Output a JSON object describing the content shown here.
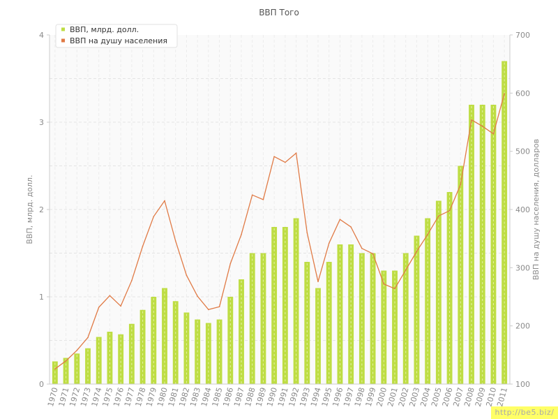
{
  "chart_data": {
    "type": "bar",
    "title": "ВВП Того",
    "ylabel_left": "ВВП, млрд. долл.",
    "ylabel_right": "ВВП на душу населения, долларов",
    "ylim_left": [
      0,
      4
    ],
    "ylim_right": [
      100,
      700
    ],
    "yticks_left": [
      "0",
      "1",
      "2",
      "3",
      "4"
    ],
    "yticks_right": [
      "100",
      "200",
      "300",
      "400",
      "500",
      "600",
      "700"
    ],
    "grid": true,
    "legend_position": "top-left",
    "categories": [
      "1970",
      "1971",
      "1972",
      "1973",
      "1974",
      "1975",
      "1976",
      "1977",
      "1978",
      "1979",
      "1980",
      "1981",
      "1982",
      "1983",
      "1984",
      "1985",
      "1986",
      "1987",
      "1988",
      "1989",
      "1990",
      "1991",
      "1992",
      "1993",
      "1994",
      "1995",
      "1996",
      "1997",
      "1998",
      "1999",
      "2000",
      "2001",
      "2002",
      "2003",
      "2004",
      "2005",
      "2006",
      "2007",
      "2008",
      "2009",
      "2010",
      "2011"
    ],
    "series": [
      {
        "name": "ВВП, млрд. долл.",
        "type": "bar",
        "axis": "left",
        "color": "#bedd44",
        "values": [
          0.26,
          0.3,
          0.35,
          0.41,
          0.54,
          0.6,
          0.57,
          0.69,
          0.85,
          1.0,
          1.1,
          0.95,
          0.82,
          0.74,
          0.7,
          0.74,
          1.0,
          1.2,
          1.5,
          1.5,
          1.8,
          1.8,
          1.9,
          1.4,
          1.1,
          1.4,
          1.6,
          1.6,
          1.5,
          1.5,
          1.3,
          1.3,
          1.5,
          1.7,
          1.9,
          2.1,
          2.2,
          2.5,
          3.2,
          3.2,
          3.2,
          3.7
        ]
      },
      {
        "name": "ВВП на душу населения",
        "type": "line",
        "axis": "right",
        "color": "#e07a45",
        "values": [
          126,
          140,
          158,
          180,
          232,
          252,
          234,
          278,
          337,
          388,
          415,
          346,
          287,
          251,
          228,
          233,
          307,
          357,
          425,
          417,
          491,
          481,
          497,
          360,
          276,
          342,
          383,
          370,
          333,
          324,
          272,
          264,
          296,
          328,
          357,
          389,
          398,
          443,
          554,
          543,
          530,
          599
        ]
      }
    ]
  },
  "watermark": "http://be5.biz/"
}
